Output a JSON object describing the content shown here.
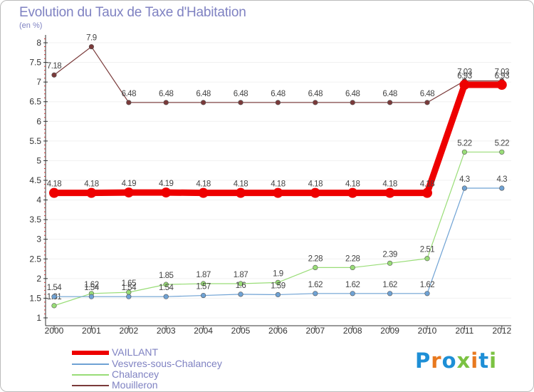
{
  "title": "Evolution du Taux de Taxe d'Habitation",
  "unit_label": "(en %)",
  "logo_text": "Proxiti",
  "logo_colors": [
    "#1e8fd6",
    "#e8791f",
    "#1e8fd6",
    "#7bc242",
    "#e8791f",
    "#1e8fd6",
    "#7bc242"
  ],
  "chart_data": {
    "type": "line",
    "x": [
      "2000",
      "2001",
      "2002",
      "2003",
      "2004",
      "2005",
      "2006",
      "2007",
      "2008",
      "2009",
      "2010",
      "2011",
      "2012"
    ],
    "ylim": [
      0.8,
      8.2
    ],
    "y_ticks": [
      "1",
      "1.5",
      "2",
      "2.5",
      "3",
      "3.5",
      "4",
      "4.5",
      "5",
      "5.5",
      "6",
      "6.5",
      "7",
      "7.5",
      "8"
    ],
    "series": [
      {
        "name": "Mouilleron",
        "color": "#7a3a3a",
        "values": [
          7.18,
          7.9,
          6.48,
          6.48,
          6.48,
          6.48,
          6.48,
          6.48,
          6.48,
          6.48,
          6.48,
          7.03,
          7.03
        ],
        "labels": [
          "7.18",
          "7.9",
          "6.48",
          "6.48",
          "6.48",
          "6.48",
          "6.48",
          "6.48",
          "6.48",
          "6.48",
          "6.48",
          "7.03",
          "7.03"
        ]
      },
      {
        "name": "Chalancey",
        "color": "#99dd77",
        "values": [
          1.31,
          1.62,
          1.65,
          1.85,
          1.87,
          1.87,
          1.9,
          2.28,
          2.28,
          2.39,
          2.51,
          5.22,
          5.22
        ],
        "labels": [
          "1.31",
          "1.62",
          "1.65",
          "1.85",
          "1.87",
          "1.87",
          "1.9",
          "2.28",
          "2.28",
          "2.39",
          "2.51",
          "5.22",
          "5.22"
        ]
      },
      {
        "name": "Vesvres-sous-Chalancey",
        "color": "#6fa2d4",
        "values": [
          1.54,
          1.54,
          1.54,
          1.54,
          1.57,
          1.6,
          1.59,
          1.62,
          1.62,
          1.62,
          1.62,
          4.3,
          4.3
        ],
        "labels": [
          "1.54",
          "1.54",
          "1.54",
          "1.54",
          "1.57",
          "1.6",
          "1.59",
          "1.62",
          "1.62",
          "1.62",
          "1.62",
          "4.3",
          "4.3"
        ]
      },
      {
        "name": "VAILLANT",
        "color": "#ee0000",
        "values": [
          4.18,
          4.18,
          4.19,
          4.19,
          4.18,
          4.18,
          4.18,
          4.18,
          4.18,
          4.18,
          4.18,
          6.93,
          6.93
        ],
        "labels": [
          "4.18",
          "4.18",
          "4.19",
          "4.19",
          "4.18",
          "4.18",
          "4.18",
          "4.18",
          "4.18",
          "4.18",
          "4.18",
          "6.93",
          "6.93"
        ]
      }
    ],
    "legend": [
      {
        "name": "VAILLANT",
        "color": "#ee0000"
      },
      {
        "name": "Vesvres-sous-Chalancey",
        "color": "#6fa2d4"
      },
      {
        "name": "Chalancey",
        "color": "#99dd77"
      },
      {
        "name": "Mouilleron",
        "color": "#7a3a3a"
      }
    ]
  }
}
